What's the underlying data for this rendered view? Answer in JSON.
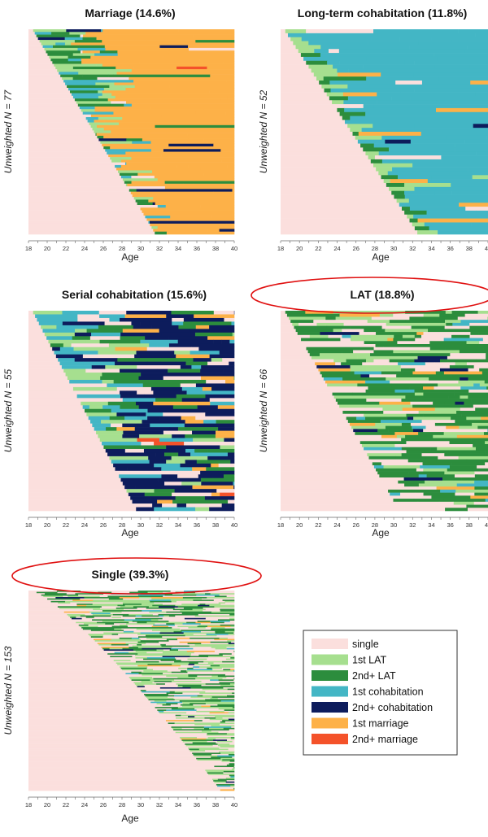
{
  "chart_data": {
    "type": "sequence-index-plot",
    "x_range": [
      18,
      40
    ],
    "x_ticks": [
      18,
      20,
      22,
      24,
      26,
      28,
      30,
      32,
      34,
      36,
      38,
      40
    ],
    "states": [
      {
        "key": "single",
        "label": "single",
        "color": "#fbdfdd"
      },
      {
        "key": "lat1",
        "label": "1st LAT",
        "color": "#a6df8f"
      },
      {
        "key": "lat2",
        "label": "2nd+ LAT",
        "color": "#2c8d3d"
      },
      {
        "key": "cohab1",
        "label": "1st cohabitation",
        "color": "#43b6c5"
      },
      {
        "key": "cohab2",
        "label": "2nd+ cohabitation",
        "color": "#0d1c5c"
      },
      {
        "key": "mar1",
        "label": "1st marriage",
        "color": "#fdb148"
      },
      {
        "key": "mar2",
        "label": "2nd+ marriage",
        "color": "#f4522a"
      }
    ],
    "panels": [
      {
        "title": "Marriage (14.6%)",
        "ylabel": "Unweighted N = 77",
        "xlabel": "Age",
        "n": 77,
        "profile": "marriage"
      },
      {
        "title": "Long-term cohabitation (11.8%)",
        "ylabel": "Unweighted N = 52",
        "xlabel": "Age",
        "n": 52,
        "profile": "ltcohab"
      },
      {
        "title": "Serial cohabitation (15.6%)",
        "ylabel": "Unweighted N = 55",
        "xlabel": "Age",
        "n": 55,
        "profile": "serial"
      },
      {
        "title": "LAT (18.8%)",
        "ylabel": "Unweighted N = 66",
        "xlabel": "Age",
        "n": 66,
        "profile": "lat"
      },
      {
        "title": "Single (39.3%)",
        "ylabel": "Unweighted N = 153",
        "xlabel": "Age",
        "n": 153,
        "profile": "single"
      }
    ],
    "highlighted_panels": [
      "LAT (18.8%)",
      "Single (39.3%)"
    ],
    "highlight_color": "#e01010"
  }
}
